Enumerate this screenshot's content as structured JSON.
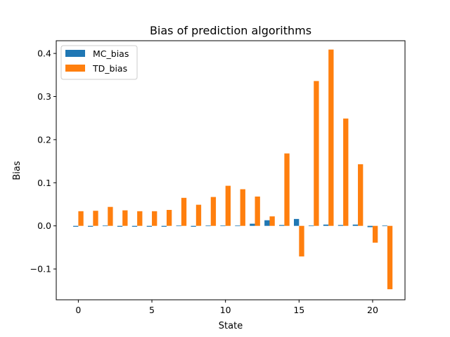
{
  "chart_data": {
    "type": "bar",
    "title": "Bias of prediction algorithms",
    "xlabel": "State",
    "ylabel": "Bias",
    "xlim": [
      -1.5,
      22.2
    ],
    "ylim": [
      -0.1715,
      0.4295
    ],
    "x_ticks": [
      0,
      5,
      10,
      15,
      20
    ],
    "x_tick_labels": [
      "0",
      "5",
      "10",
      "15",
      "20"
    ],
    "y_ticks": [
      -0.1,
      0.0,
      0.1,
      0.2,
      0.3,
      0.4
    ],
    "y_tick_labels": [
      "−0.1",
      "0.0",
      "0.1",
      "0.2",
      "0.3",
      "0.4"
    ],
    "grid": false,
    "legend_position": "upper-left",
    "states": [
      0,
      1,
      2,
      3,
      4,
      5,
      6,
      7,
      8,
      9,
      10,
      11,
      12,
      13,
      14,
      15,
      16,
      17,
      18,
      19,
      20,
      21
    ],
    "series": [
      {
        "name": "MC_bias",
        "color": "#1f77b4",
        "values": [
          -0.002,
          -0.002,
          0.0,
          -0.002,
          -0.002,
          -0.002,
          -0.002,
          0.0,
          -0.002,
          0.0,
          0.0,
          0.0,
          0.005,
          0.013,
          0.002,
          0.016,
          0.0,
          0.003,
          0.002,
          0.003,
          -0.003,
          0.0
        ]
      },
      {
        "name": "TD_bias",
        "color": "#ff7f0e",
        "values": [
          0.034,
          0.035,
          0.044,
          0.036,
          0.034,
          0.034,
          0.037,
          0.065,
          0.049,
          0.067,
          0.093,
          0.085,
          0.068,
          0.022,
          0.168,
          -0.071,
          0.336,
          0.409,
          0.249,
          0.143,
          -0.039,
          -0.147
        ]
      }
    ]
  }
}
